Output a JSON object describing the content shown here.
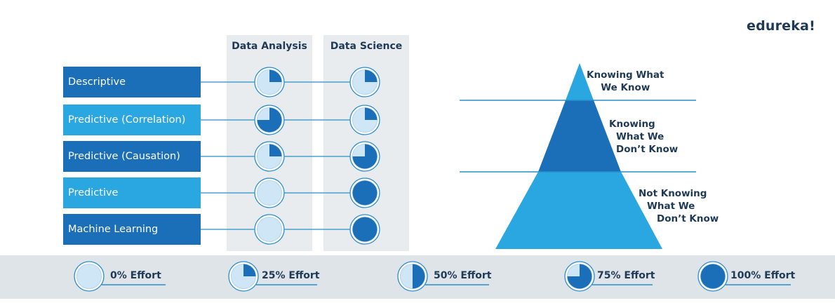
{
  "brand": {
    "logo": "edureka!"
  },
  "matrix": {
    "columns": [
      {
        "label": "Data Analysis"
      },
      {
        "label": "Data Science"
      }
    ],
    "rows": [
      {
        "label": "Descriptive",
        "color": "#1b6fb8",
        "data_analysis_effort": 25,
        "data_science_effort": 25
      },
      {
        "label": "Predictive (Correlation)",
        "color": "#2aa6e0",
        "data_analysis_effort": 75,
        "data_science_effort": 25
      },
      {
        "label": "Predictive (Causation)",
        "color": "#1b6fb8",
        "data_analysis_effort": 25,
        "data_science_effort": 75
      },
      {
        "label": "Predictive",
        "color": "#2aa6e0",
        "data_analysis_effort": 0,
        "data_science_effort": 100
      },
      {
        "label": "Machine Learning",
        "color": "#1b6fb8",
        "data_analysis_effort": 0,
        "data_science_effort": 100
      }
    ]
  },
  "pyramid": {
    "levels": [
      {
        "lines": [
          "Knowing What",
          "We Know"
        ],
        "color": "#2aa6e0"
      },
      {
        "lines": [
          "Knowing",
          "What We",
          "Don’t Know"
        ],
        "color": "#1b6fb8"
      },
      {
        "lines": [
          "Not Knowing",
          "What We",
          "Don’t Know"
        ],
        "color": "#2aa6e0"
      }
    ]
  },
  "legend": {
    "items": [
      {
        "label": "0% Effort",
        "effort": 0
      },
      {
        "label": "25% Effort",
        "effort": 25
      },
      {
        "label": "50% Effort",
        "effort": 50
      },
      {
        "label": "75% Effort",
        "effort": 75
      },
      {
        "label": "100% Effort",
        "effort": 100
      }
    ]
  },
  "colors": {
    "dark_blue": "#1b6fb8",
    "light_blue": "#2aa6e0",
    "column_bg": "#e8ecef",
    "legend_bg": "#dfe4e8",
    "connector": "#2a8fcc",
    "text_dark": "#1f3a56"
  }
}
